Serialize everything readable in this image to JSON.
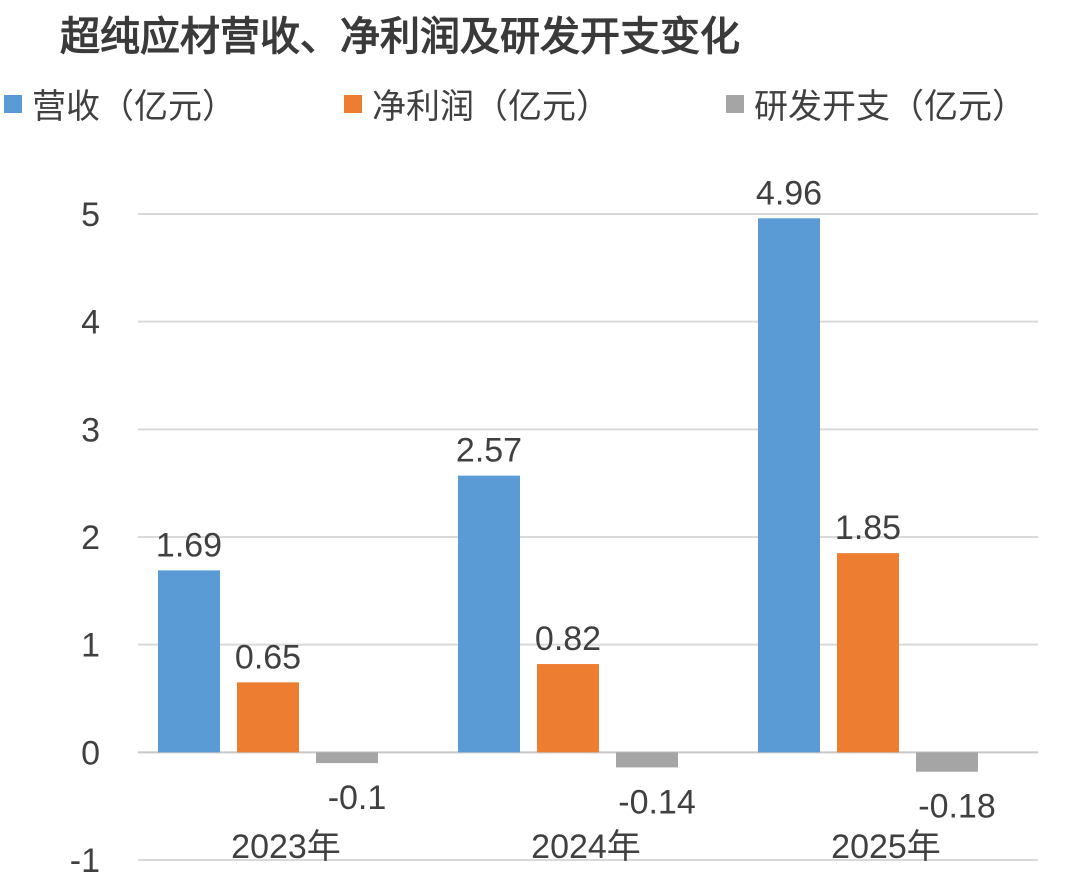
{
  "chart_data": {
    "type": "bar",
    "title": "超纯应材营收、净利润及研发开支变化",
    "categories": [
      "2023年",
      "2024年",
      "2025年"
    ],
    "series": [
      {
        "name": "营收（亿元）",
        "values": [
          1.69,
          2.57,
          4.96
        ],
        "color": "#5b9bd5"
      },
      {
        "name": "净利润（亿元）",
        "values": [
          0.65,
          0.82,
          1.85
        ],
        "color": "#ed7d31"
      },
      {
        "name": "研发开支（亿元）",
        "values": [
          -0.1,
          -0.14,
          -0.18
        ],
        "color": "#a5a5a5"
      }
    ],
    "yticks": [
      5,
      4,
      3,
      2,
      1,
      0,
      -1
    ],
    "ylim": [
      -1,
      5
    ],
    "grid": true,
    "legend": "top",
    "xlabel": "",
    "ylabel": ""
  }
}
